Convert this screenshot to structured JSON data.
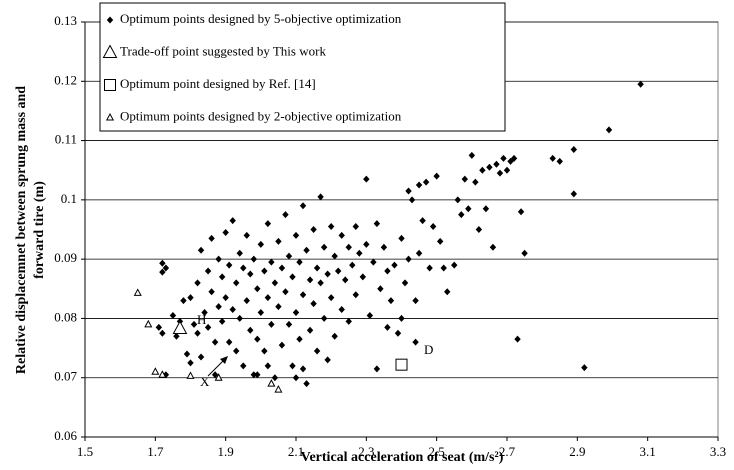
{
  "chart_data": {
    "type": "scatter",
    "x_label": "Vertical acceleration of seat (m/s²)",
    "y_label": [
      "Relative displacemnet between sprung mass and",
      "forward tire (m)"
    ],
    "xlim": [
      1.5,
      3.3
    ],
    "xticks": [
      1.5,
      1.7,
      1.9,
      2.1,
      2.3,
      2.5,
      2.7,
      2.9,
      3.1,
      3.3
    ],
    "ylim": [
      0.06,
      0.13
    ],
    "yticks": [
      0.06,
      0.07,
      0.08,
      0.09,
      0.1,
      0.11,
      0.12,
      0.13
    ],
    "grid": true,
    "legend": "top-left",
    "annotations": [
      "H",
      "D",
      "X"
    ],
    "series": [
      {
        "name": "Optimum points designed by 5-objective optimization",
        "marker": "diamond",
        "color": "#000000",
        "x": [
          1.72,
          1.73,
          1.72,
          1.71,
          1.72,
          1.73,
          1.75,
          1.76,
          1.77,
          1.78,
          1.79,
          1.8,
          1.8,
          1.81,
          1.82,
          1.82,
          1.83,
          1.83,
          1.84,
          1.85,
          1.85,
          1.86,
          1.86,
          1.87,
          1.87,
          1.88,
          1.88,
          1.89,
          1.89,
          1.9,
          1.9,
          1.91,
          1.91,
          1.92,
          1.92,
          1.93,
          1.93,
          1.94,
          1.94,
          1.95,
          1.95,
          1.96,
          1.96,
          1.97,
          1.97,
          1.98,
          1.98,
          1.99,
          1.99,
          2.0,
          2.0,
          2.01,
          2.01,
          2.02,
          2.02,
          2.03,
          2.03,
          2.04,
          2.04,
          2.05,
          2.05,
          2.06,
          2.06,
          2.07,
          2.07,
          2.08,
          2.08,
          2.09,
          2.09,
          2.1,
          2.1,
          2.11,
          2.11,
          2.12,
          2.12,
          2.13,
          2.13,
          2.14,
          2.14,
          2.15,
          2.15,
          2.16,
          2.16,
          2.17,
          2.17,
          2.18,
          2.18,
          2.19,
          2.19,
          2.2,
          2.2,
          2.21,
          2.21,
          2.22,
          2.23,
          2.23,
          2.24,
          2.25,
          2.25,
          2.26,
          2.27,
          2.27,
          2.28,
          2.29,
          2.3,
          2.3,
          2.31,
          2.32,
          2.33,
          2.33,
          2.34,
          2.35,
          2.36,
          2.37,
          2.38,
          2.39,
          2.4,
          2.41,
          2.42,
          2.42,
          2.43,
          2.44,
          2.45,
          2.45,
          2.46,
          2.47,
          2.48,
          2.49,
          2.5,
          2.51,
          2.52,
          2.53,
          2.55,
          2.56,
          2.57,
          2.58,
          2.59,
          2.6,
          2.61,
          2.62,
          2.63,
          2.64,
          2.65,
          2.66,
          2.67,
          2.68,
          2.69,
          2.7,
          2.71,
          2.72,
          2.74,
          2.75,
          2.73,
          2.83,
          2.85,
          2.89,
          2.89,
          2.92,
          2.99,
          3.08,
          2.4,
          2.36,
          2.44,
          2.1,
          2.12,
          1.99,
          2.02
        ],
        "values": [
          0.0893,
          0.0885,
          0.0878,
          0.0785,
          0.0775,
          0.0705,
          0.0805,
          0.077,
          0.0795,
          0.083,
          0.074,
          0.0725,
          0.0835,
          0.079,
          0.086,
          0.0775,
          0.0915,
          0.0735,
          0.081,
          0.088,
          0.0785,
          0.0935,
          0.0845,
          0.076,
          0.0705,
          0.09,
          0.082,
          0.087,
          0.0795,
          0.0945,
          0.0835,
          0.089,
          0.076,
          0.0965,
          0.0815,
          0.086,
          0.0745,
          0.091,
          0.08,
          0.0885,
          0.072,
          0.094,
          0.083,
          0.0875,
          0.078,
          0.09,
          0.0705,
          0.085,
          0.0765,
          0.0925,
          0.081,
          0.088,
          0.0745,
          0.096,
          0.0835,
          0.0895,
          0.079,
          0.086,
          0.07,
          0.093,
          0.082,
          0.0885,
          0.0755,
          0.0975,
          0.0845,
          0.0905,
          0.079,
          0.087,
          0.072,
          0.094,
          0.081,
          0.0895,
          0.0765,
          0.099,
          0.084,
          0.0915,
          0.069,
          0.0865,
          0.078,
          0.095,
          0.0825,
          0.0885,
          0.0745,
          0.1005,
          0.086,
          0.092,
          0.08,
          0.0875,
          0.073,
          0.0955,
          0.0835,
          0.0905,
          0.077,
          0.088,
          0.094,
          0.0815,
          0.0865,
          0.092,
          0.0795,
          0.089,
          0.0955,
          0.084,
          0.091,
          0.087,
          0.1035,
          0.0925,
          0.0805,
          0.0895,
          0.0715,
          0.096,
          0.085,
          0.092,
          0.088,
          0.083,
          0.089,
          0.0775,
          0.0935,
          0.086,
          0.1015,
          0.09,
          0.1,
          0.083,
          0.1025,
          0.091,
          0.0965,
          0.103,
          0.0885,
          0.0955,
          0.104,
          0.093,
          0.0885,
          0.0845,
          0.089,
          0.1,
          0.0975,
          0.1035,
          0.0985,
          0.1075,
          0.103,
          0.095,
          0.105,
          0.0985,
          0.1055,
          0.092,
          0.106,
          0.1045,
          0.107,
          0.105,
          0.1065,
          0.107,
          0.098,
          0.091,
          0.0765,
          0.107,
          0.1065,
          0.1085,
          0.101,
          0.0717,
          0.1118,
          0.1195,
          0.08,
          0.0785,
          0.076,
          0.07,
          0.0715,
          0.0705,
          0.072
        ]
      },
      {
        "name": "Trade-off point suggested by This work",
        "marker": "triangle",
        "color": "#000000",
        "x": [
          1.77
        ],
        "values": [
          0.0783
        ]
      },
      {
        "name": "Optimum point designed by Ref. [14]",
        "marker": "square",
        "color": "#000000",
        "x": [
          2.4
        ],
        "values": [
          0.0722
        ]
      },
      {
        "name": "Optimum points designed by 2-objective optimization",
        "marker": "small-triangle",
        "color": "#000000",
        "x": [
          1.65,
          1.68,
          1.7,
          1.72,
          1.8,
          1.88,
          2.03,
          2.05
        ],
        "values": [
          0.0843,
          0.079,
          0.071,
          0.0705,
          0.0703,
          0.07,
          0.069,
          0.068
        ]
      }
    ]
  }
}
